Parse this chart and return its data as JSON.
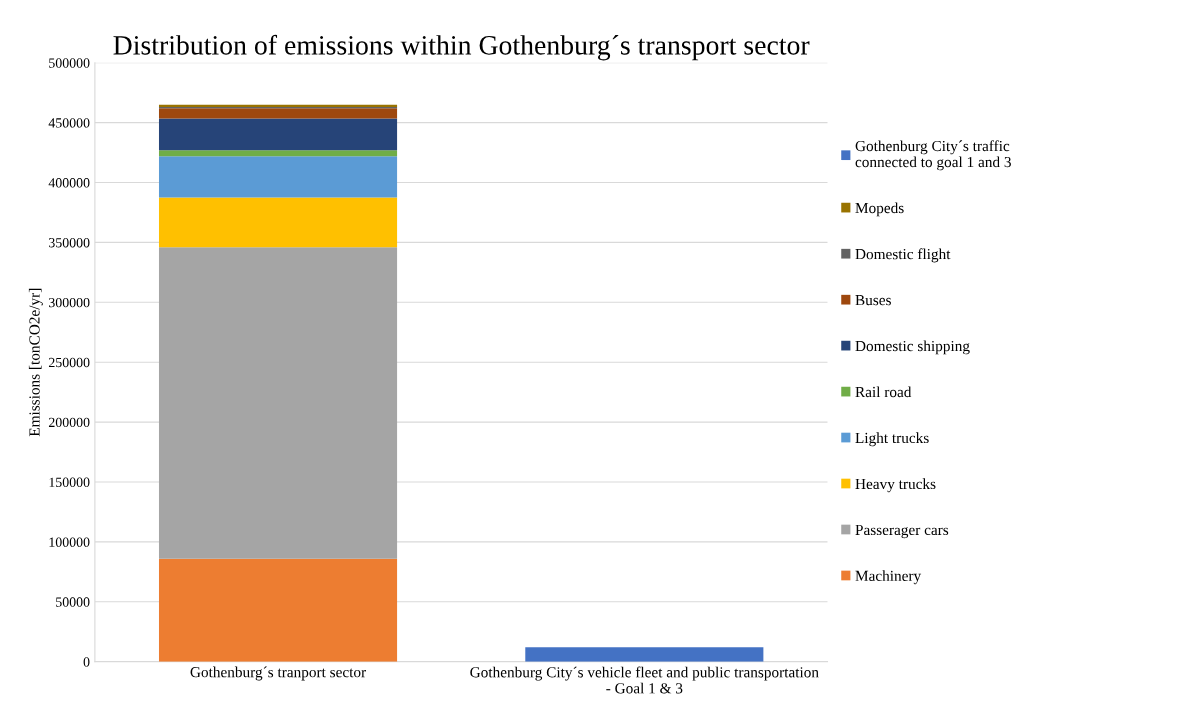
{
  "chart_data": {
    "type": "bar",
    "stacked": true,
    "title": "Distribution of emissions within Gothenburg´s transport sector",
    "ylabel": "Emissions [tonCO2e/yr]",
    "categories": [
      "Gothenburg´s tranport sector",
      "Gothenburg City´s vehicle fleet and public transportation - Goal 1 & 3"
    ],
    "series": [
      {
        "name": "Machinery",
        "color": "#ed7d31",
        "values": [
          86000,
          null
        ]
      },
      {
        "name": "Passerager cars",
        "color": "#a5a5a5",
        "values": [
          260000,
          null
        ]
      },
      {
        "name": "Heavy trucks",
        "color": "#ffc000",
        "values": [
          41500,
          null
        ]
      },
      {
        "name": "Light trucks",
        "color": "#5b9bd5",
        "values": [
          34500,
          null
        ]
      },
      {
        "name": "Rail road",
        "color": "#70ad47",
        "values": [
          5000,
          null
        ]
      },
      {
        "name": "Domestic shipping",
        "color": "#264478",
        "values": [
          26500,
          null
        ]
      },
      {
        "name": "Buses",
        "color": "#9e480e",
        "values": [
          8500,
          null
        ]
      },
      {
        "name": "Domestic flight",
        "color": "#636363",
        "values": [
          1000,
          null
        ]
      },
      {
        "name": "Mopeds",
        "color": "#997300",
        "values": [
          2000,
          null
        ]
      },
      {
        "name": "Gothenburg City´s traffic connected to goal 1 and 3",
        "color": "#4472c4",
        "values": [
          null,
          12000
        ]
      }
    ],
    "ylim": [
      0,
      500000
    ],
    "yticks": [
      0,
      50000,
      100000,
      150000,
      200000,
      250000,
      300000,
      350000,
      400000,
      450000,
      500000
    ],
    "grid": "y",
    "legend": "right"
  }
}
